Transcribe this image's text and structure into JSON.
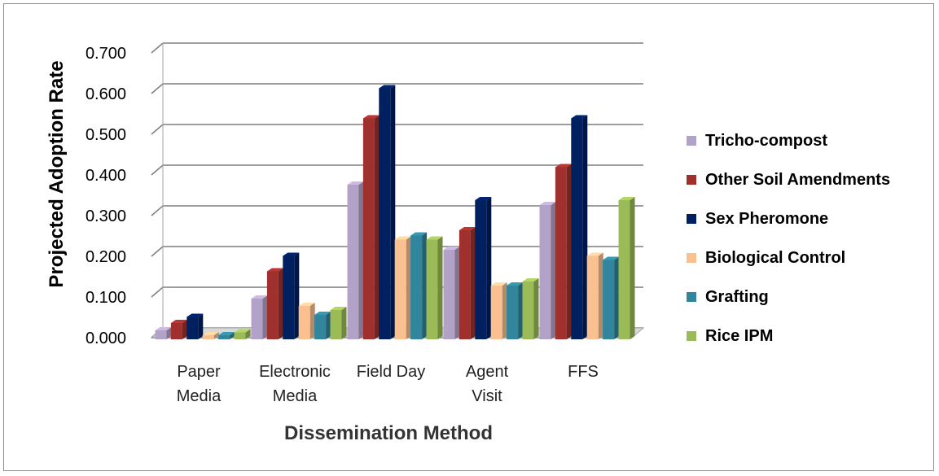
{
  "chart_data": {
    "type": "bar",
    "title": "",
    "xlabel": "Dissemination Method",
    "ylabel": "Projected Adoption Rate",
    "ylim": [
      0,
      0.7
    ],
    "yticks": [
      "0.000",
      "0.100",
      "0.200",
      "0.300",
      "0.400",
      "0.500",
      "0.600",
      "0.700"
    ],
    "categories": [
      [
        "Paper",
        "Media"
      ],
      [
        "Electronic",
        "Media"
      ],
      [
        "Field Day"
      ],
      [
        "Agent",
        "Visit"
      ],
      [
        "FFS"
      ]
    ],
    "grid": true,
    "legend": "right",
    "series": [
      {
        "name": "Tricho-compost",
        "color": "#b3a2c7",
        "values": [
          0.022,
          0.1,
          0.38,
          0.22,
          0.33
        ]
      },
      {
        "name": "Other Soil Amendments",
        "color": "#a0302d",
        "values": [
          0.04,
          0.167,
          0.543,
          0.268,
          0.423
        ]
      },
      {
        "name": "Sex Pheromone",
        "color": "#002060",
        "values": [
          0.055,
          0.205,
          0.617,
          0.342,
          0.543
        ]
      },
      {
        "name": "Biological Control",
        "color": "#fac090",
        "values": [
          0.01,
          0.082,
          0.245,
          0.132,
          0.205
        ]
      },
      {
        "name": "Grafting",
        "color": "#31859c",
        "values": [
          0.01,
          0.06,
          0.255,
          0.132,
          0.195
        ]
      },
      {
        "name": "Rice IPM",
        "color": "#9bbb59",
        "values": [
          0.017,
          0.072,
          0.245,
          0.142,
          0.342
        ]
      }
    ]
  }
}
